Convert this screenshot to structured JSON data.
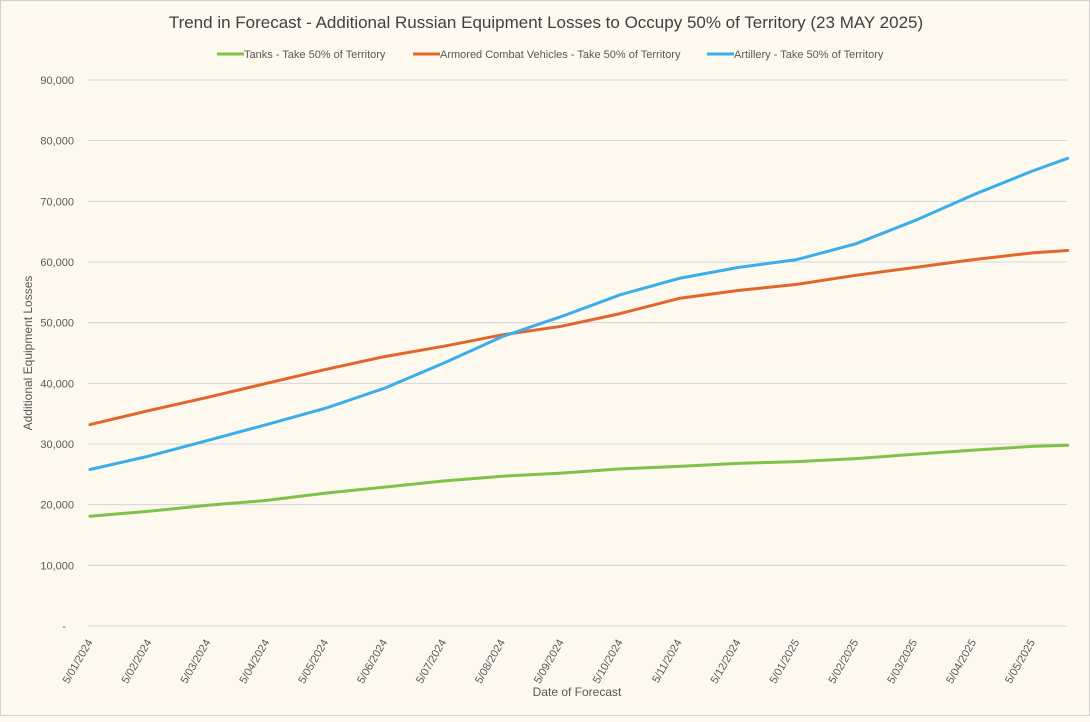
{
  "chart_data": {
    "type": "line",
    "title": "Trend in Forecast - Additional Russian Equipment Losses to Occupy 50% of Territory (23 MAY 2025)",
    "xlabel": "Date of Forecast",
    "ylabel": "Additional Equipment Losses",
    "ylim": [
      0,
      90000
    ],
    "yticks": [
      0,
      10000,
      20000,
      30000,
      40000,
      50000,
      60000,
      70000,
      80000,
      90000
    ],
    "ytick_labels": [
      "-",
      "10,000",
      "20,000",
      "30,000",
      "40,000",
      "50,000",
      "60,000",
      "70,000",
      "80,000",
      "90,000"
    ],
    "x_tick_labels": [
      "5/01/2024",
      "5/02/2024",
      "5/03/2024",
      "5/04/2024",
      "5/05/2024",
      "5/06/2024",
      "5/07/2024",
      "5/08/2024",
      "5/09/2024",
      "5/10/2024",
      "5/11/2024",
      "5/12/2024",
      "5/01/2025",
      "5/02/2025",
      "5/03/2025",
      "5/04/2025",
      "5/05/2025"
    ],
    "x_month_index": [
      0,
      1,
      2,
      3,
      4,
      5,
      6,
      7,
      8,
      9,
      10,
      11,
      12,
      13,
      14,
      15,
      16,
      16.6
    ],
    "grid": true,
    "legend_position": "top",
    "series": [
      {
        "name": "Tanks - Take 50% of Territory",
        "color": "#7fc14a",
        "values": [
          18100,
          18900,
          19900,
          20700,
          21900,
          22900,
          23900,
          24700,
          25200,
          25900,
          26300,
          26800,
          27100,
          27600,
          28300,
          29000,
          29600,
          29800
        ]
      },
      {
        "name": "Armored Combat Vehicles - Take 50% of Territory",
        "color": "#e2652c",
        "values": [
          33200,
          35500,
          37700,
          40000,
          42300,
          44400,
          46100,
          48000,
          49400,
          51500,
          54000,
          55300,
          56300,
          57800,
          59100,
          60400,
          61500,
          61900
        ]
      },
      {
        "name": "Artillery - Take 50% of Territory",
        "color": "#3aaeea",
        "values": [
          25800,
          28000,
          30600,
          33200,
          35900,
          39200,
          43300,
          47700,
          51000,
          54600,
          57300,
          59100,
          60400,
          63000,
          66800,
          71100,
          75000,
          77100
        ]
      }
    ]
  }
}
